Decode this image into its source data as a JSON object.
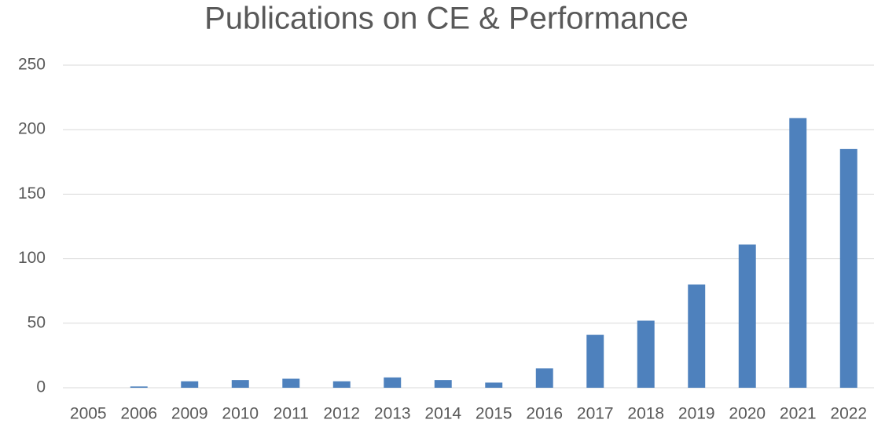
{
  "chart_data": {
    "type": "bar",
    "title": "Publications on CE & Performance",
    "categories": [
      "2005",
      "2006",
      "2009",
      "2010",
      "2011",
      "2012",
      "2013",
      "2014",
      "2015",
      "2016",
      "2017",
      "2018",
      "2019",
      "2020",
      "2021",
      "2022"
    ],
    "values": [
      0,
      1,
      5,
      6,
      7,
      5,
      8,
      6,
      4,
      15,
      41,
      52,
      80,
      111,
      209,
      185
    ],
    "color": "#4e81bd",
    "ylim": [
      0,
      250
    ],
    "yticks": [
      0,
      50,
      100,
      150,
      200,
      250
    ],
    "grid": true
  }
}
